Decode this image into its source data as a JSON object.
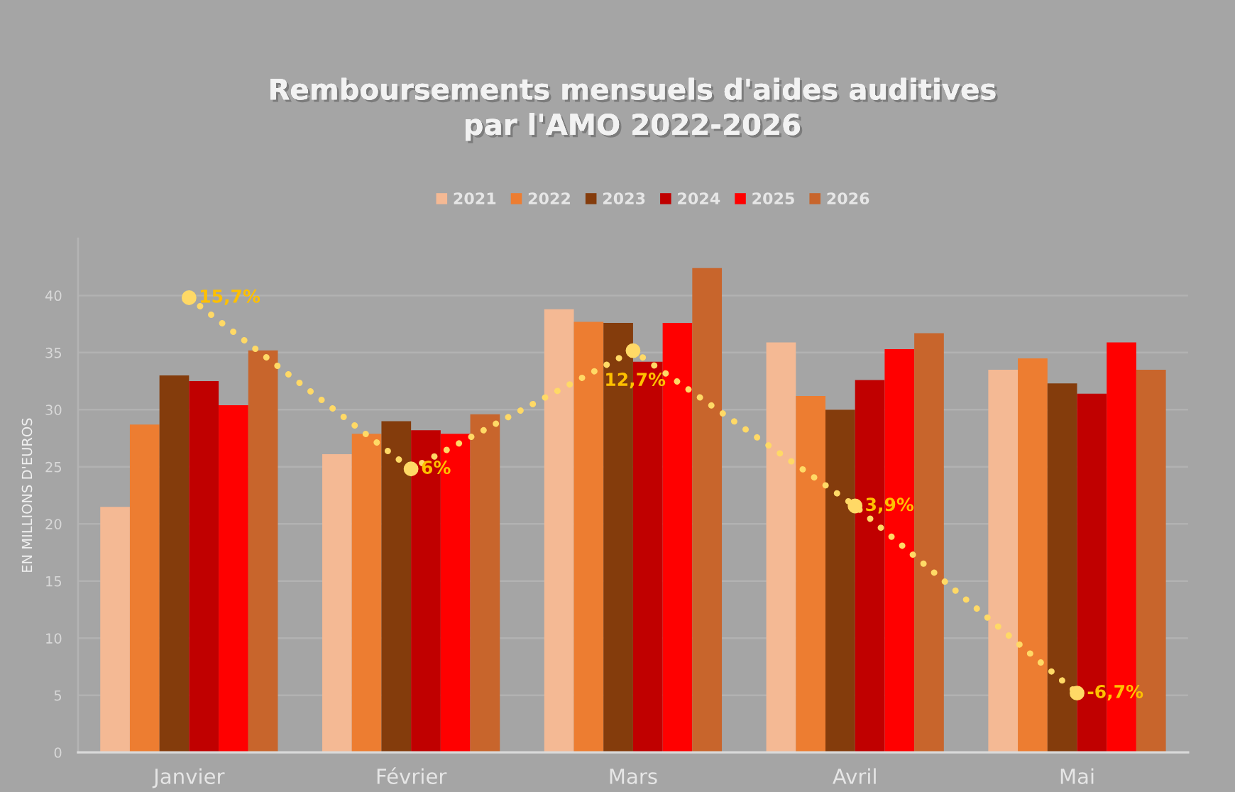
{
  "chart_data": {
    "type": "bar",
    "title": "Remboursements mensuels d'aides auditives\npar l'AMO 2022-2026",
    "ylabel": "EN MILLIONS D'EUROS",
    "categories": [
      "Janvier",
      "Février",
      "Mars",
      "Avril",
      "Mai"
    ],
    "series": [
      {
        "name": "2021",
        "color": "#f4b994",
        "values": [
          21.5,
          26.1,
          38.8,
          35.9,
          33.5
        ]
      },
      {
        "name": "2022",
        "color": "#ed7d31",
        "values": [
          28.7,
          27.9,
          37.7,
          31.2,
          34.5
        ]
      },
      {
        "name": "2023",
        "color": "#843c0c",
        "values": [
          33.0,
          29.0,
          37.6,
          30.0,
          32.3
        ]
      },
      {
        "name": "2024",
        "color": "#c00000",
        "values": [
          32.5,
          28.2,
          34.2,
          32.6,
          31.4
        ]
      },
      {
        "name": "2025",
        "color": "#ff0000",
        "values": [
          30.4,
          27.9,
          37.6,
          35.3,
          35.9
        ]
      },
      {
        "name": "2026",
        "color": "#c8652c",
        "values": [
          35.2,
          29.6,
          42.4,
          36.7,
          33.5
        ]
      },
      {
        "type": "line",
        "axis": "y2",
        "color": "#ffd966",
        "values": [
          15.7,
          6,
          12.7,
          3.9,
          -6.7
        ],
        "value_labels": [
          "15,7%",
          "6%",
          "12,7%",
          "3,9%",
          "-6,7%"
        ],
        "marker": "circle",
        "line_style": "dotted"
      }
    ],
    "ylim": [
      0,
      45
    ],
    "yticks": [
      0,
      5,
      10,
      15,
      20,
      25,
      30,
      35,
      40
    ],
    "grid": "y",
    "legend": "top"
  }
}
